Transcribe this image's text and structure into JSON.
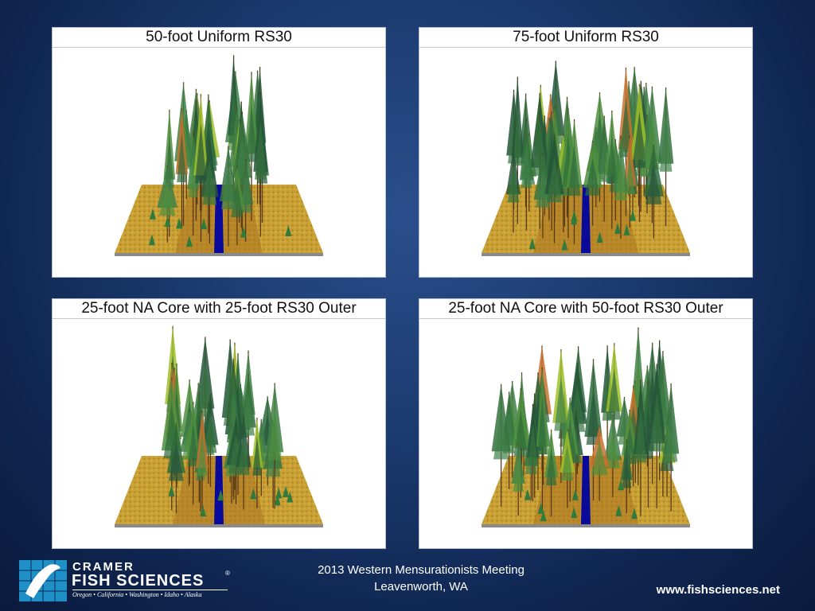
{
  "panels": [
    {
      "title": "50-foot Uniform RS30",
      "scene": "uniform50"
    },
    {
      "title": "75-foot Uniform RS30",
      "scene": "uniform75"
    },
    {
      "title": "25-foot NA Core with 25-foot RS30 Outer",
      "scene": "core25"
    },
    {
      "title": "25-foot NA Core with 50-foot RS30 Outer",
      "scene": "core50"
    }
  ],
  "footer": {
    "meeting_line1": "2013 Western Mensurationists Meeting",
    "meeting_line2": "Leavenworth, WA",
    "url": "www.fishsciences.net"
  },
  "logo": {
    "line1": "CRAMER",
    "line2": "FISH SCIENCES",
    "registered": "®",
    "tagline": "Oregon • California • Washington • Idaho • Alaska"
  },
  "colors": {
    "background": "#1b3a6e",
    "ground": "#c9a033",
    "stream": "#0a0a9a",
    "tree": "#2e6b3c"
  }
}
